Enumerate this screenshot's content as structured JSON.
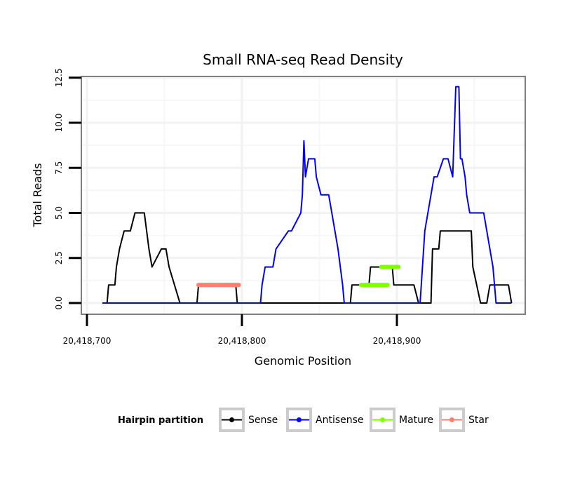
{
  "chart_data": {
    "type": "line",
    "title": "Small RNA-seq Read Density",
    "xlabel": "Genomic Position",
    "ylabel": "Total Reads",
    "xlim": [
      20418700,
      20418980
    ],
    "ylim": [
      0,
      12.5
    ],
    "x_ticks": [
      20418700,
      20418800,
      20418900
    ],
    "x_tick_labels": [
      "20,418,700",
      "20,418,800",
      "20,418,900"
    ],
    "y_ticks": [
      0,
      2.5,
      5,
      7.5,
      10,
      12.5
    ],
    "y_tick_labels": [
      "0.0",
      "2.5",
      "5.0",
      "7.5",
      "10.0",
      "12.5"
    ],
    "grid": true,
    "legend": {
      "title": "Hairpin partition",
      "placement": "bottom",
      "entries": [
        {
          "name": "Sense",
          "color": "#000000"
        },
        {
          "name": "Antisense",
          "color": "#0000ff"
        },
        {
          "name": "Mature",
          "color": "#7fff00"
        },
        {
          "name": "Star",
          "color": "#fa8072"
        }
      ]
    },
    "series": [
      {
        "name": "Sense",
        "color": "#000000",
        "x": [
          20418710,
          20418713,
          20418714,
          20418718,
          20418719,
          20418721,
          20418724,
          20418728,
          20418731,
          20418737,
          20418740,
          20418742,
          20418748,
          20418751,
          20418753,
          20418760,
          20418771,
          20418772,
          20418796,
          20418797,
          20418867,
          20418870,
          20418871,
          20418882,
          20418883,
          20418897,
          20418898,
          20418911,
          20418914,
          20418922,
          20418923,
          20418927,
          20418928,
          20418948,
          20418949,
          20418954,
          20418958,
          20418960,
          20418962,
          20418972,
          20418974
        ],
        "values": [
          0,
          0,
          1,
          1,
          2,
          3,
          4,
          4,
          5,
          5,
          3,
          2,
          3,
          3,
          2,
          0,
          0,
          1,
          1,
          0,
          0,
          0,
          1,
          1,
          2,
          2,
          1,
          1,
          0,
          0,
          3,
          3,
          4,
          4,
          2,
          0,
          0,
          1,
          1,
          1,
          0
        ]
      },
      {
        "name": "Antisense",
        "color": "#0000ff",
        "x": [
          20418710,
          20418812,
          20418813,
          20418815,
          20418820,
          20418822,
          20418830,
          20418832,
          20418838,
          20418839,
          20418840,
          20418841,
          20418843,
          20418847,
          20418848,
          20418851,
          20418856,
          20418858,
          20418860,
          20418862,
          20418865,
          20418866,
          20418915,
          20418918,
          20418920,
          20418924,
          20418926,
          20418930,
          20418933,
          20418936,
          20418938,
          20418940,
          20418941,
          20418942,
          20418944,
          20418945,
          20418947,
          20418950,
          20418954,
          20418956,
          20418962,
          20418964,
          20418967,
          20418968,
          20418974
        ],
        "values": [
          0,
          0,
          1,
          2,
          2,
          3,
          4,
          4,
          5,
          6,
          9,
          7,
          8,
          8,
          7,
          6,
          6,
          5,
          4,
          3,
          1,
          0,
          0,
          4,
          5,
          7,
          7,
          8,
          8,
          7,
          12,
          12,
          8,
          8,
          7,
          6,
          5,
          5,
          5,
          5,
          2,
          0,
          0,
          0,
          0
        ]
      },
      {
        "name": "Mature",
        "color": "#7fff00",
        "segments": [
          {
            "x_start": 20418877,
            "x_end": 20418894,
            "value": 1
          },
          {
            "x_start": 20418890,
            "x_end": 20418901,
            "value": 2
          }
        ]
      },
      {
        "name": "Star",
        "color": "#fa8072",
        "segments": [
          {
            "x_start": 20418772,
            "x_end": 20418798,
            "value": 1
          }
        ]
      }
    ]
  }
}
